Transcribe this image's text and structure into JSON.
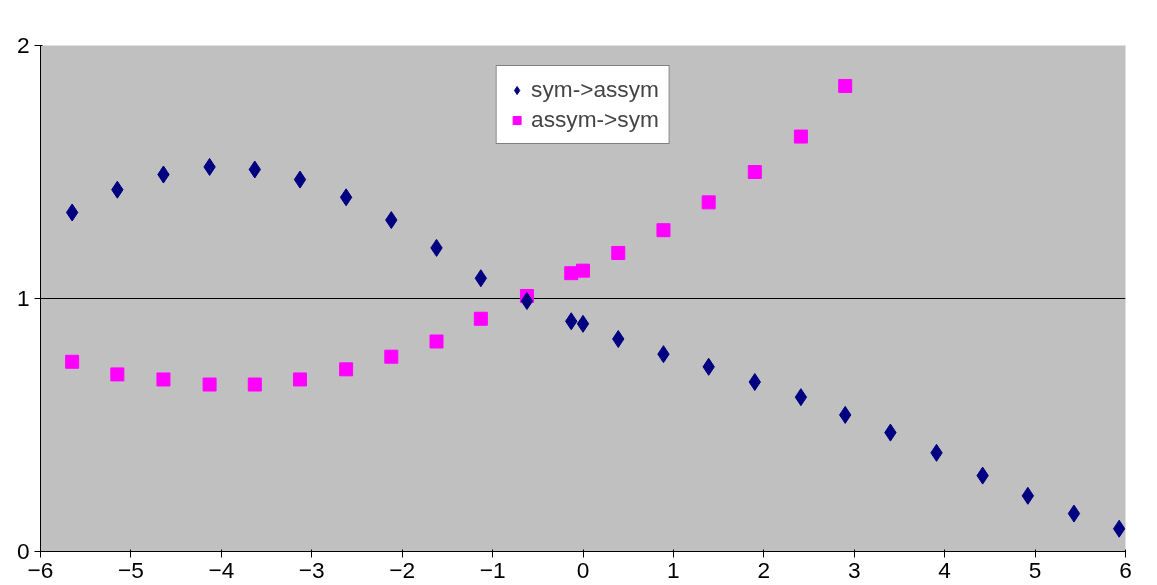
{
  "chart_data": {
    "type": "scatter",
    "xlim": [
      -6,
      6
    ],
    "xticks": [
      -6,
      -5,
      -4,
      -3,
      -2,
      -1,
      0,
      1,
      2,
      3,
      4,
      5,
      6
    ],
    "ylim": [
      0,
      2
    ],
    "yticks": [
      0,
      1,
      2
    ],
    "grid": "y",
    "legend": "top",
    "series": [
      {
        "name": "sym->assym",
        "color": "#000080",
        "marker": "diamond",
        "x": [
          -5.65,
          -5.15,
          -4.64,
          -4.13,
          -3.63,
          -3.13,
          -2.62,
          -2.12,
          -1.62,
          -1.13,
          -0.62,
          -0.13,
          0,
          0.39,
          0.89,
          1.39,
          1.9,
          2.41,
          2.9,
          3.4,
          3.91,
          4.42,
          4.92,
          5.43,
          5.93
        ],
        "values": [
          1.34,
          1.43,
          1.49,
          1.52,
          1.51,
          1.47,
          1.4,
          1.31,
          1.2,
          1.08,
          0.99,
          0.91,
          0.9,
          0.84,
          0.78,
          0.73,
          0.67,
          0.61,
          0.54,
          0.47,
          0.39,
          0.3,
          0.22,
          0.15,
          0.09
        ]
      },
      {
        "name": "assym->sym",
        "color": "#ff00ff",
        "marker": "square",
        "x": [
          -5.65,
          -5.15,
          -4.64,
          -4.13,
          -3.63,
          -3.13,
          -2.62,
          -2.12,
          -1.62,
          -1.13,
          -0.62,
          -0.13,
          0,
          0.39,
          0.89,
          1.39,
          1.9,
          2.41,
          2.9
        ],
        "values": [
          0.75,
          0.7,
          0.68,
          0.66,
          0.66,
          0.68,
          0.72,
          0.77,
          0.83,
          0.92,
          1.01,
          1.1,
          1.11,
          1.18,
          1.27,
          1.38,
          1.5,
          1.64,
          1.84
        ]
      }
    ]
  }
}
